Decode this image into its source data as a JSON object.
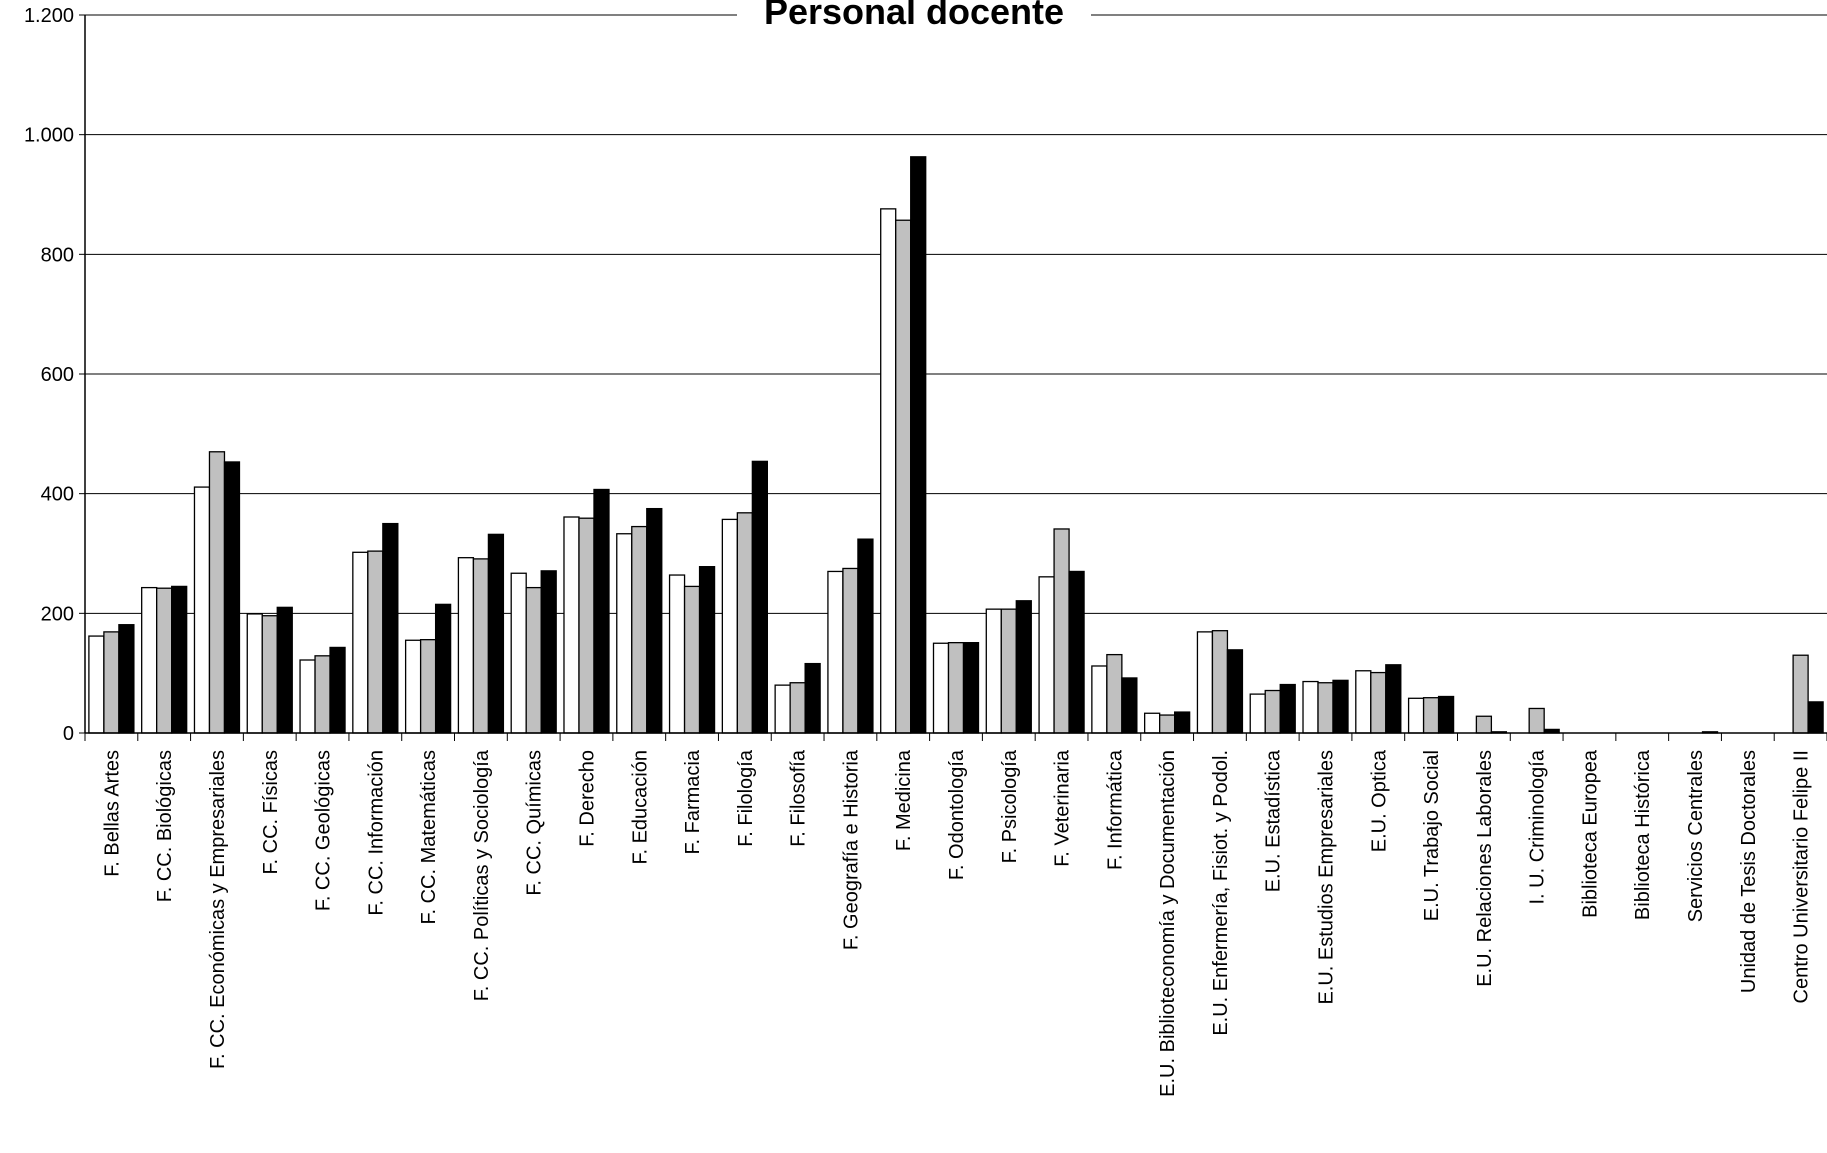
{
  "chart_data": {
    "type": "bar",
    "title": "Personal docente",
    "xlabel": "",
    "ylabel": "",
    "ylim": [
      0,
      1200
    ],
    "yticks": [
      0,
      200,
      400,
      600,
      800,
      1000,
      1200
    ],
    "ytick_labels": [
      "0",
      "200",
      "400",
      "600",
      "800",
      "1.000",
      "1.200"
    ],
    "grid": true,
    "legend": "none",
    "colors": [
      "#ffffff",
      "#c0c0c0",
      "#000000"
    ],
    "categories": [
      "F. Bellas Artes",
      "F. CC. Biológicas",
      "F. CC. Económicas y Empresariales",
      "F. CC. Físicas",
      "F. CC. Geológicas",
      "F. CC. Información",
      "F. CC. Matemáticas",
      "F. CC. Políticas y Sociología",
      "F. CC. Químicas",
      "F. Derecho",
      "F. Educación",
      "F. Farmacia",
      "F. Filología",
      "F. Filosofía",
      "F. Geografía e Historia",
      "F. Medicina",
      "F. Odontología",
      "F. Psicología",
      "F. Veterinaria",
      "F. Informática",
      "E.U. Biblioteconomía y Documentación",
      "E.U. Enfermería, Fisiot. y Podol.",
      "E.U. Estadística",
      "E.U. Estudios Empresariales",
      "E.U. Optica",
      "E.U. Trabajo Social",
      "E.U. Relaciones Laborales",
      "I. U. Criminología",
      "Biblioteca Europea",
      "Biblioteca Histórica",
      "Servicios Centrales",
      "Unidad de Tesis Doctorales",
      "Centro Universitario Felipe II"
    ],
    "series": [
      {
        "values": [
          162,
          243,
          411,
          199,
          122,
          302,
          155,
          293,
          267,
          361,
          333,
          264,
          357,
          80,
          270,
          876,
          150,
          207,
          261,
          112,
          33,
          169,
          65,
          86,
          104,
          58,
          0,
          0,
          0,
          0,
          0,
          0,
          0
        ]
      },
      {
        "values": [
          169,
          242,
          470,
          196,
          129,
          304,
          156,
          291,
          243,
          359,
          345,
          245,
          368,
          84,
          275,
          857,
          151,
          207,
          341,
          131,
          30,
          171,
          71,
          84,
          101,
          59,
          28,
          41,
          0,
          0,
          0,
          0,
          130
        ]
      },
      {
        "values": [
          181,
          245,
          453,
          210,
          143,
          350,
          215,
          332,
          271,
          407,
          375,
          278,
          454,
          116,
          324,
          963,
          151,
          221,
          270,
          92,
          35,
          139,
          81,
          88,
          114,
          61,
          2,
          6,
          0,
          0,
          2,
          0,
          52
        ]
      }
    ]
  }
}
